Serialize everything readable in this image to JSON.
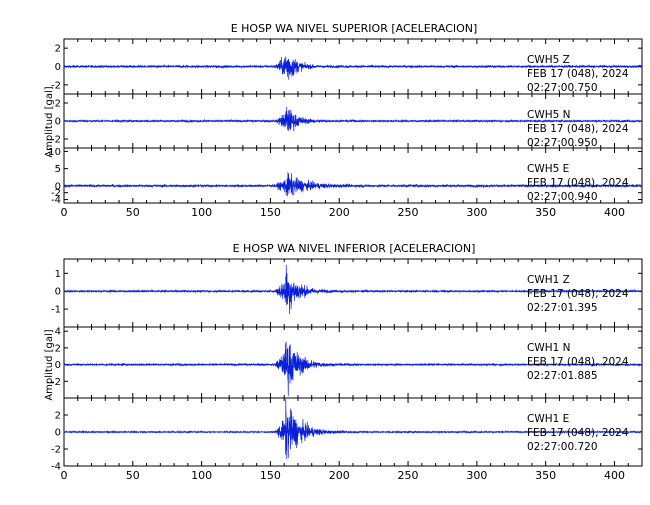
{
  "colors": {
    "trace": "#0a1fd8",
    "axis": "#000000",
    "background": "#ffffff"
  },
  "chart_data": [
    {
      "type": "line",
      "title": "E HOSP WA NIVEL SUPERIOR [ACELERACION]",
      "ylabel": "Amplitud [gal]",
      "xlabel": "",
      "xlim": [
        0,
        420
      ],
      "x_ticks": [
        "0",
        "50",
        "100",
        "150",
        "200",
        "250",
        "300",
        "350",
        "400"
      ],
      "grid": false,
      "event_onset_s": 153,
      "peak_s": 161,
      "series": [
        {
          "name": "CWH5   Z",
          "date": "FEB 17 (048), 2024",
          "time": "02:27:00.750",
          "ylim": [
            -3,
            3
          ],
          "y_ticks": [
            "2",
            "0",
            "-2"
          ],
          "noise_amp": 0.12,
          "peak_amp": 2.4,
          "decay_s": 6
        },
        {
          "name": "CWH5   N",
          "date": "FEB 17 (048), 2024",
          "time": "02:27:00.950",
          "ylim": [
            -3,
            3
          ],
          "y_ticks": [
            "2",
            "0",
            "-2"
          ],
          "noise_amp": 0.1,
          "peak_amp": 1.9,
          "decay_s": 7
        },
        {
          "name": "CWH5   E",
          "date": "FEB 17 (048), 2024",
          "time": "02:27:00.940",
          "ylim": [
            -5,
            11
          ],
          "y_ticks": [
            "10",
            "5",
            "0",
            "-2",
            "-4"
          ],
          "noise_amp": 0.35,
          "peak_amp": 3.8,
          "decay_s": 12
        }
      ]
    },
    {
      "type": "line",
      "title": "E HOSP WA NIVEL INFERIOR [ACELERACION]",
      "ylabel": "Amplitud [gal]",
      "xlabel": "",
      "xlim": [
        0,
        420
      ],
      "x_ticks": [
        "0",
        "50",
        "100",
        "150",
        "200",
        "250",
        "300",
        "350",
        "400"
      ],
      "grid": false,
      "event_onset_s": 153,
      "peak_s": 161,
      "series": [
        {
          "name": "CWH1   Z",
          "date": "FEB 17 (048), 2024",
          "time": "02:27:01.395",
          "ylim": [
            -2,
            1.8
          ],
          "y_ticks": [
            "1",
            "0",
            "-1"
          ],
          "noise_amp": 0.05,
          "peak_amp": 1.5,
          "decay_s": 8
        },
        {
          "name": "CWH1   N",
          "date": "FEB 17 (048), 2024",
          "time": "02:27:01.885",
          "ylim": [
            -4,
            4.5
          ],
          "y_ticks": [
            "4",
            "2",
            "0",
            "-2"
          ],
          "noise_amp": 0.1,
          "peak_amp": 3.6,
          "decay_s": 9
        },
        {
          "name": "CWH1   E",
          "date": "FEB 17 (048), 2024",
          "time": "02:27:00.720",
          "ylim": [
            -4,
            4
          ],
          "y_ticks": [
            "2",
            "0",
            "-2",
            "-4"
          ],
          "noise_amp": 0.08,
          "peak_amp": 3.6,
          "decay_s": 10
        }
      ]
    }
  ]
}
